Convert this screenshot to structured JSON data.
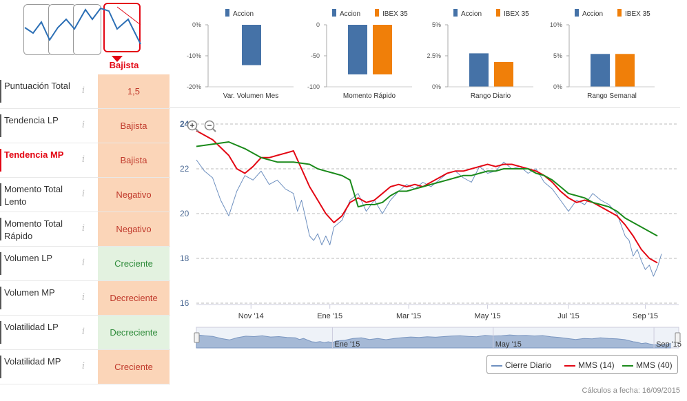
{
  "trend": {
    "label": "Bajista"
  },
  "indicators": [
    {
      "name": "Puntuación Total",
      "value": "1,5",
      "color": "orange",
      "highlight": false
    },
    {
      "name": "Tendencia LP",
      "value": "Bajista",
      "color": "orange",
      "highlight": false
    },
    {
      "name": "Tendencia MP",
      "value": "Bajista",
      "color": "orange",
      "highlight": true
    },
    {
      "name": "Momento Total Lento",
      "value": "Negativo",
      "color": "orange",
      "highlight": false
    },
    {
      "name": "Momento Total Rápido",
      "value": "Negativo",
      "color": "orange",
      "highlight": false
    },
    {
      "name": "Volumen LP",
      "value": "Creciente",
      "color": "green",
      "highlight": false
    },
    {
      "name": "Volumen MP",
      "value": "Decreciente",
      "color": "orange",
      "highlight": false
    },
    {
      "name": "Volatilidad LP",
      "value": "Decreciente",
      "color": "green",
      "highlight": false
    },
    {
      "name": "Volatilidad MP",
      "value": "Creciente",
      "color": "orange",
      "highlight": false
    }
  ],
  "colors": {
    "accion": "#4572a7",
    "ibex": "#f07f09",
    "diario": "#6d8fbf",
    "mms14": "#e30613",
    "mms40": "#1a8a1a"
  },
  "chart_data": [
    {
      "type": "bar",
      "title": "Var. Volumen Mes",
      "legend": [
        "Accion"
      ],
      "ticks": [
        "0%",
        "-10%",
        "-20%"
      ],
      "ylim": [
        -20,
        0
      ],
      "series": [
        {
          "name": "Accion",
          "values": [
            -13
          ]
        }
      ]
    },
    {
      "type": "bar",
      "title": "Momento Rápido",
      "legend": [
        "Accion",
        "IBEX 35"
      ],
      "ticks": [
        "0",
        "-50",
        "-100"
      ],
      "ylim": [
        -100,
        0
      ],
      "series": [
        {
          "name": "Accion",
          "values": [
            -80
          ]
        },
        {
          "name": "IBEX 35",
          "values": [
            -80
          ]
        }
      ]
    },
    {
      "type": "bar",
      "title": "Rango Diario",
      "legend": [
        "Accion",
        "IBEX 35"
      ],
      "ticks": [
        "5%",
        "2.5%",
        "0%"
      ],
      "ylim": [
        0,
        5
      ],
      "series": [
        {
          "name": "Accion",
          "values": [
            2.7
          ]
        },
        {
          "name": "IBEX 35",
          "values": [
            2.0
          ]
        }
      ]
    },
    {
      "type": "bar",
      "title": "Rango Semanal",
      "legend": [
        "Accion",
        "IBEX 35"
      ],
      "ticks": [
        "10%",
        "5%",
        "0%"
      ],
      "ylim": [
        0,
        10
      ],
      "series": [
        {
          "name": "Accion",
          "values": [
            5.3
          ]
        },
        {
          "name": "IBEX 35",
          "values": [
            5.3
          ]
        }
      ]
    },
    {
      "type": "line",
      "ylim": [
        16,
        24
      ],
      "yticks": [
        "24",
        "22",
        "20",
        "18",
        "16"
      ],
      "xticks": [
        "Nov '14",
        "Ene '15",
        "Mar '15",
        "May '15",
        "Jul '15",
        "Sep '15"
      ],
      "navigator_labels": [
        "Ene '15",
        "May '15",
        "Sep '15"
      ],
      "x_range": [
        0,
        230
      ],
      "xtick_positions": [
        27,
        66,
        105,
        144,
        184,
        222
      ],
      "series": [
        {
          "name": "Cierre Diario",
          "x": [
            0,
            4,
            8,
            12,
            16,
            20,
            24,
            28,
            32,
            36,
            40,
            44,
            48,
            50,
            52,
            54,
            56,
            58,
            60,
            62,
            64,
            66,
            68,
            72,
            76,
            80,
            84,
            88,
            92,
            96,
            100,
            104,
            108,
            112,
            116,
            120,
            124,
            128,
            132,
            136,
            140,
            144,
            148,
            152,
            156,
            160,
            164,
            168,
            172,
            176,
            180,
            184,
            188,
            192,
            196,
            200,
            204,
            208,
            212,
            214,
            216,
            218,
            220,
            222,
            224,
            226,
            228,
            230
          ],
          "values": [
            22.4,
            21.9,
            21.6,
            20.6,
            19.9,
            21.0,
            21.7,
            21.5,
            21.9,
            21.3,
            21.5,
            21.1,
            20.9,
            20.1,
            20.6,
            19.8,
            19.0,
            18.8,
            19.1,
            18.6,
            19.0,
            18.6,
            19.4,
            19.7,
            20.6,
            20.9,
            20.1,
            20.6,
            20.0,
            20.6,
            21.0,
            21.3,
            21.1,
            21.4,
            21.2,
            21.5,
            21.8,
            21.9,
            21.6,
            21.4,
            22.1,
            21.8,
            21.9,
            22.3,
            22.0,
            22.1,
            21.8,
            22.0,
            21.4,
            21.1,
            20.6,
            20.1,
            20.6,
            20.4,
            20.9,
            20.6,
            20.4,
            20.0,
            19.0,
            18.8,
            18.1,
            18.4,
            17.9,
            17.5,
            17.7,
            17.2,
            17.6,
            18.2
          ]
        },
        {
          "name": "MMS (14)",
          "x": [
            0,
            8,
            16,
            20,
            24,
            28,
            32,
            36,
            40,
            44,
            48,
            52,
            56,
            60,
            64,
            68,
            72,
            76,
            80,
            84,
            88,
            92,
            96,
            100,
            104,
            108,
            112,
            116,
            120,
            124,
            128,
            132,
            136,
            140,
            144,
            148,
            152,
            156,
            160,
            164,
            168,
            172,
            176,
            180,
            184,
            188,
            192,
            196,
            200,
            204,
            208,
            212,
            216,
            220,
            224,
            228
          ],
          "values": [
            23.7,
            23.3,
            22.6,
            22.0,
            21.8,
            22.1,
            22.5,
            22.5,
            22.6,
            22.7,
            22.8,
            22.0,
            21.2,
            20.6,
            20.0,
            19.6,
            19.9,
            20.5,
            20.7,
            20.5,
            20.6,
            20.9,
            21.2,
            21.3,
            21.2,
            21.3,
            21.2,
            21.4,
            21.6,
            21.8,
            21.9,
            21.9,
            22.0,
            22.1,
            22.2,
            22.1,
            22.2,
            22.2,
            22.1,
            22.0,
            21.9,
            21.7,
            21.4,
            21.0,
            20.7,
            20.5,
            20.6,
            20.5,
            20.3,
            20.1,
            19.9,
            19.5,
            19.0,
            18.4,
            18.0,
            17.8
          ]
        },
        {
          "name": "MMS (40)",
          "x": [
            0,
            8,
            16,
            24,
            32,
            40,
            48,
            56,
            60,
            64,
            68,
            72,
            76,
            80,
            84,
            88,
            92,
            96,
            100,
            104,
            108,
            112,
            116,
            120,
            124,
            128,
            132,
            136,
            140,
            144,
            148,
            152,
            156,
            160,
            164,
            168,
            172,
            176,
            180,
            184,
            188,
            192,
            196,
            200,
            204,
            208,
            212,
            216,
            220,
            224,
            228
          ],
          "values": [
            23.0,
            23.1,
            23.2,
            22.9,
            22.5,
            22.3,
            22.3,
            22.2,
            22.0,
            21.9,
            21.8,
            21.7,
            21.5,
            20.3,
            20.4,
            20.4,
            20.5,
            20.8,
            21.0,
            21.0,
            21.1,
            21.2,
            21.3,
            21.4,
            21.5,
            21.6,
            21.7,
            21.7,
            21.8,
            21.9,
            21.9,
            22.0,
            22.0,
            22.0,
            22.0,
            21.8,
            21.7,
            21.5,
            21.2,
            20.9,
            20.8,
            20.7,
            20.5,
            20.4,
            20.3,
            20.1,
            19.8,
            19.6,
            19.4,
            19.2,
            19.0
          ]
        }
      ]
    }
  ],
  "legend_items": [
    {
      "name": "Cierre Diario",
      "color": "#6d8fbf"
    },
    {
      "name": "MMS (14)",
      "color": "#e30613"
    },
    {
      "name": "MMS (40)",
      "color": "#1a8a1a"
    }
  ],
  "footer": "Cálculos a fecha: 16/09/2015"
}
